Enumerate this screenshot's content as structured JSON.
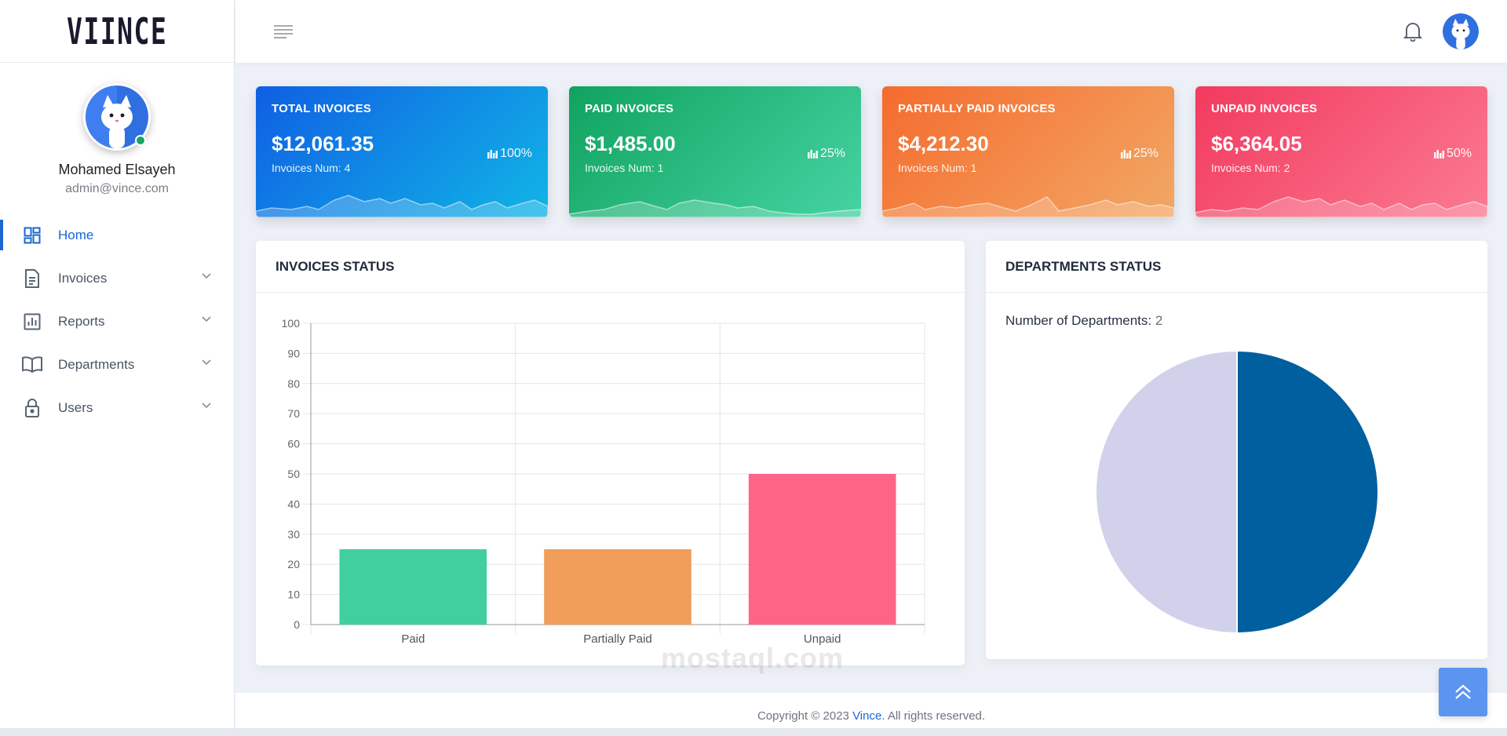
{
  "brand": {
    "logo_text": "VIINCE"
  },
  "profile": {
    "name": "Mohamed Elsayeh",
    "email": "admin@vince.com"
  },
  "menu": [
    {
      "label": "Home",
      "icon": "dashboard-icon",
      "active": true
    },
    {
      "label": "Invoices",
      "icon": "document-icon"
    },
    {
      "label": "Reports",
      "icon": "bar-chart-icon"
    },
    {
      "label": "Departments",
      "icon": "book-icon"
    },
    {
      "label": "Users",
      "icon": "lock-icon"
    }
  ],
  "cards": [
    {
      "title": "TOTAL INVOICES",
      "value": "$12,061.35",
      "sub": "Invoices Num: 4",
      "pct": "100%",
      "color": "#0f5fe3"
    },
    {
      "title": "PAID INVOICES",
      "value": "$1,485.00",
      "sub": "Invoices Num: 1",
      "pct": "25%",
      "color": "#10a35f"
    },
    {
      "title": "PARTIALLY PAID INVOICES",
      "value": "$4,212.30",
      "sub": "Invoices Num: 1",
      "pct": "25%",
      "color": "#f56b2e"
    },
    {
      "title": "UNPAID INVOICES",
      "value": "$6,364.05",
      "sub": "Invoices Num: 2",
      "pct": "50%",
      "color": "#f23a5e"
    }
  ],
  "invoices_panel": {
    "title": "INVOICES STATUS"
  },
  "departments_panel": {
    "title": "DEPARTMENTS STATUS",
    "count_label": "Number of Departments:",
    "count_value": "2"
  },
  "chart_data": [
    {
      "type": "bar",
      "categories": [
        "Paid",
        "Partially Paid",
        "Unpaid"
      ],
      "values": [
        25,
        25,
        50
      ],
      "colors": [
        "#41cfa0",
        "#f09e5a",
        "#fe6486"
      ],
      "ylim": [
        0,
        100
      ],
      "yticks": [
        "0",
        "10",
        "20",
        "30",
        "40",
        "50",
        "60",
        "70",
        "80",
        "90",
        "100"
      ],
      "grid": true,
      "title": "",
      "xlabel": "",
      "ylabel": ""
    },
    {
      "type": "pie",
      "values": [
        50,
        50
      ],
      "colors": [
        "#005f9f",
        "#d2d1eb"
      ],
      "title": ""
    }
  ],
  "footer": {
    "prefix": "Copyright © 2023",
    "brand": "Vince",
    "suffix": ". All rights reserved."
  },
  "watermark": "mostaql.com",
  "accent": "#1a67d2"
}
